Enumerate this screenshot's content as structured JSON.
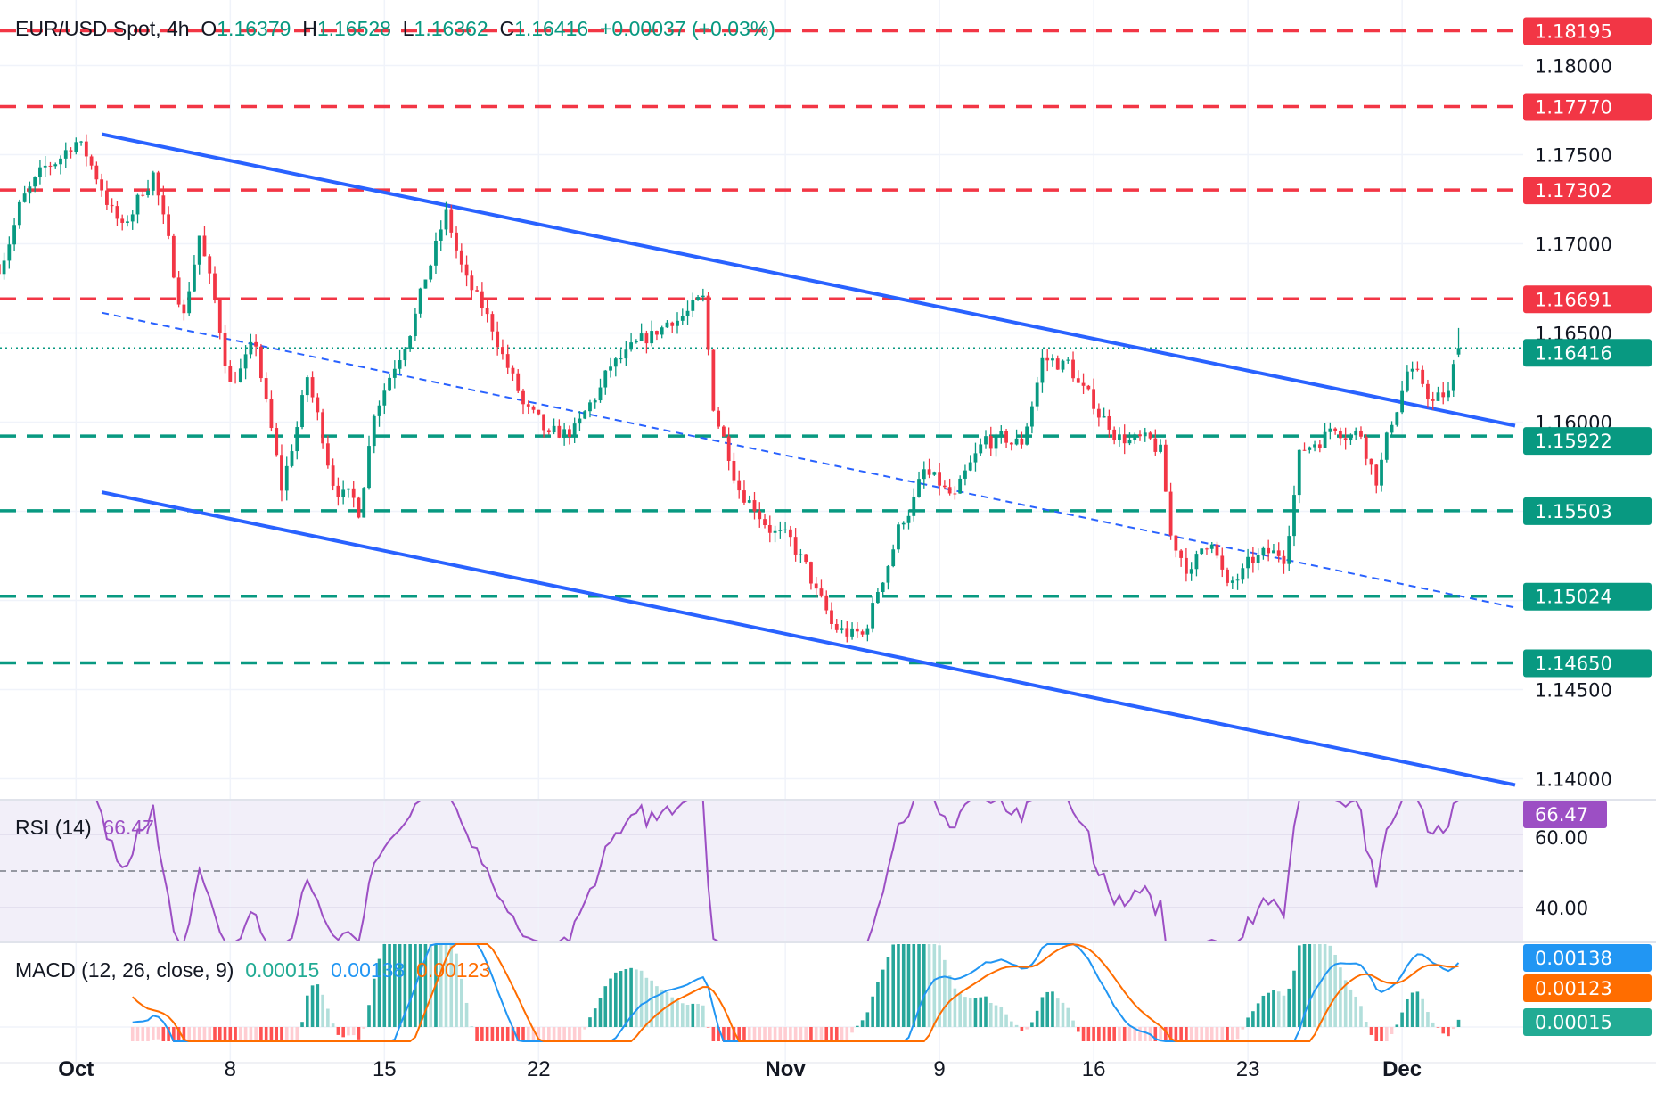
{
  "header": {
    "symbol": "EUR/USD Spot, 4h",
    "o_label": "O",
    "o": "1.16379",
    "h_label": "H",
    "h": "1.16528",
    "l_label": "L",
    "l": "1.16362",
    "c_label": "C",
    "c": "1.16416",
    "change": "+0.00037 (+0.03%)"
  },
  "colors": {
    "up": "#089981",
    "down": "#f23645",
    "trendline": "#2962ff",
    "resistance": "#f23645",
    "support": "#089981",
    "rsi": "#9c4fc4",
    "macd": "#2196f3",
    "signal": "#ff6d00",
    "hist_up": "#26a69a",
    "hist_down": "#ff5252"
  },
  "price_axis": {
    "ticks": [
      "1.18000",
      "1.17500",
      "1.17000",
      "1.16500",
      "1.16000",
      "1.14500",
      "1.14000"
    ],
    "resistance_levels": [
      "1.18195",
      "1.17770",
      "1.17302",
      "1.16691"
    ],
    "support_levels": [
      "1.15922",
      "1.15503",
      "1.15024",
      "1.14650"
    ],
    "last_price": "1.16416"
  },
  "time_axis": {
    "ticks": [
      {
        "label": "Oct",
        "at": "Oct 1 00:00",
        "bold": true
      },
      {
        "label": "8",
        "at": "Oct 8 00:00"
      },
      {
        "label": "15",
        "at": "Oct 15 00:00"
      },
      {
        "label": "22",
        "at": "Oct 22 00:00"
      },
      {
        "label": "Nov",
        "at": "Nov 3 00:00",
        "bold": true
      },
      {
        "label": "9",
        "at": "Nov 10 00:00"
      },
      {
        "label": "16",
        "at": "Nov 17 00:00"
      },
      {
        "label": "23",
        "at": "Nov 24 00:00"
      },
      {
        "label": "Dec",
        "at": "Dec 1 00:00",
        "bold": true
      }
    ]
  },
  "rsi": {
    "label": "RSI (14)",
    "value": "66.47",
    "ticks": [
      "60.00",
      "40.00"
    ]
  },
  "macd": {
    "label": "MACD (12, 26, close, 9)",
    "hist": "0.00015",
    "macd": "0.00138",
    "signal": "0.00123"
  },
  "chart_data": {
    "type": "candlestick",
    "title": "EUR/USD Spot, 4h",
    "ylim": [
      1.1375,
      1.1836
    ],
    "price_path": [
      [
        "Sep 26 12:00",
        1.16886
      ],
      [
        "Sep 29 04:00",
        1.17212
      ],
      [
        "Oct 1 00:00",
        1.17597
      ],
      [
        "Oct 1 20:00",
        1.17331
      ],
      [
        "Oct 2 12:00",
        1.17064
      ],
      [
        "Oct 3 12:00",
        1.1742
      ],
      [
        "Oct 6 04:00",
        1.16827
      ],
      [
        "Oct 6 12:00",
        1.1662
      ],
      [
        "Oct 7 00:00",
        1.17064
      ],
      [
        "Oct 7 12:00",
        1.1665
      ],
      [
        "Oct 8 00:00",
        1.16235
      ],
      [
        "Oct 8 20:00",
        1.16412
      ],
      [
        "Oct 9 16:00",
        1.15612
      ],
      [
        "Oct 10 12:00",
        1.16235
      ],
      [
        "Oct 13 08:00",
        1.157
      ],
      [
        "Oct 14 04:00",
        1.15494
      ],
      [
        "Oct 14 16:00",
        1.16085
      ],
      [
        "Oct 15 12:00",
        1.16412
      ],
      [
        "Oct 16 04:00",
        1.1671
      ],
      [
        "Oct 17 00:00",
        1.17153
      ],
      [
        "Oct 17 16:00",
        1.16768
      ],
      [
        "Oct 20 16:00",
        1.16472
      ],
      [
        "Oct 21 12:00",
        1.16085
      ],
      [
        "Oct 22 08:00",
        1.1588
      ],
      [
        "Oct 23 08:00",
        1.15968
      ],
      [
        "Oct 24 08:00",
        1.16294
      ],
      [
        "Oct 27 08:00",
        1.16412
      ],
      [
        "Oct 28 08:00",
        1.1659
      ],
      [
        "Oct 29 08:00",
        1.1665
      ],
      [
        "Oct 29 16:00",
        1.16085
      ],
      [
        "Oct 30 12:00",
        1.15672
      ],
      [
        "Oct 31 12:00",
        1.15434
      ],
      [
        "Nov 3 12:00",
        1.15227
      ],
      [
        "Nov 4 12:00",
        1.14842
      ],
      [
        "Nov 5 12:00",
        1.14783
      ],
      [
        "Nov 6 00:00",
        1.1505
      ],
      [
        "Nov 6 16:00",
        1.15405
      ],
      [
        "Nov 7 12:00",
        1.157
      ],
      [
        "Nov 10 12:00",
        1.15553
      ],
      [
        "Nov 11 12:00",
        1.1588
      ],
      [
        "Nov 12 16:00",
        1.1588
      ],
      [
        "Nov 13 08:00",
        1.16353
      ],
      [
        "Nov 14 04:00",
        1.16323
      ],
      [
        "Nov 14 20:00",
        1.16116
      ],
      [
        "Nov 17 20:00",
        1.15938
      ],
      [
        "Nov 19 04:00",
        1.1582
      ],
      [
        "Nov 19 12:00",
        1.15345
      ],
      [
        "Nov 20 04:00",
        1.15168
      ],
      [
        "Nov 20 20:00",
        1.15375
      ],
      [
        "Nov 21 08:00",
        1.1505
      ],
      [
        "Nov 24 08:00",
        1.15227
      ],
      [
        "Nov 25 04:00",
        1.15257
      ],
      [
        "Nov 25 16:00",
        1.1582
      ],
      [
        "Nov 26 20:00",
        1.15997
      ],
      [
        "Nov 27 16:00",
        1.15938
      ],
      [
        "Nov 28 04:00",
        1.157
      ],
      [
        "Nov 28 16:00",
        1.15997
      ],
      [
        "Dec 1 04:00",
        1.16294
      ],
      [
        "Dec 2 00:00",
        1.16116
      ],
      [
        "Dec 2 12:00",
        1.16146
      ],
      [
        "Dec 2 20:00",
        1.16416
      ]
    ],
    "last_candle": {
      "open": 1.16379,
      "high": 1.16528,
      "low": 1.16362,
      "close": 1.16416
    },
    "trendlines": [
      {
        "style": "solid",
        "from": [
          "Oct 1 20:00",
          1.17615
        ],
        "to": [
          "Dec 4 16:00",
          1.1598
        ]
      },
      {
        "style": "solid",
        "from": [
          "Oct 1 20:00",
          1.15607
        ],
        "to": [
          "Dec 4 16:00",
          1.13965
        ]
      },
      {
        "style": "dashed",
        "from": [
          "Oct 1 20:00",
          1.16614
        ],
        "to": [
          "Dec 4 16:00",
          1.1496
        ]
      }
    ],
    "levels": [
      1.18195,
      1.1777,
      1.17302,
      1.16691,
      1.15922,
      1.15503,
      1.15024,
      1.1465
    ]
  }
}
